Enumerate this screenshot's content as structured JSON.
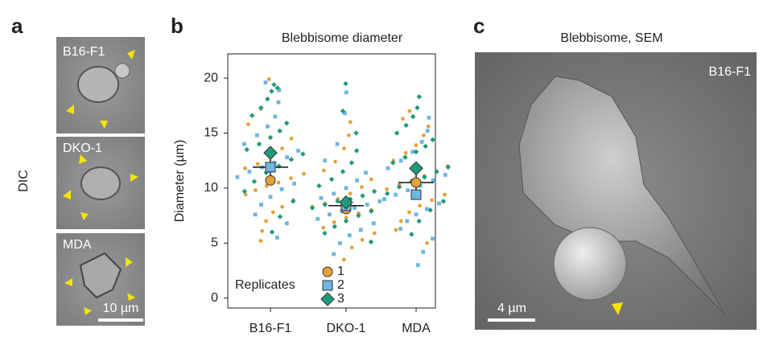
{
  "panel_a": {
    "letter": "a",
    "side_label": "DIC",
    "images": [
      {
        "label": "B16-F1"
      },
      {
        "label": "DKO-1"
      },
      {
        "label": "MDA"
      }
    ],
    "scale_bar": "10 µm"
  },
  "chart_data": {
    "type": "swarm",
    "letter": "b",
    "title": "Blebbisome diameter",
    "y_label": "Diameter (µm)",
    "legend_title": "Replicates",
    "categories": [
      "B16-F1",
      "DKO-1",
      "MDA"
    ],
    "ylim": [
      -0.9,
      22.2
    ],
    "yticks": [
      0,
      5,
      10,
      15,
      20
    ],
    "series": [
      {
        "name": "1",
        "color": "#e3a33a",
        "marker": "circle",
        "means": [
          10.7,
          8.1,
          10.5
        ],
        "values": [
          [
            5.2,
            6.1,
            7.0,
            7.8,
            8.3,
            8.9,
            9.4,
            9.8,
            10.2,
            10.5,
            10.9,
            11.3,
            11.8,
            12.2,
            12.9,
            13.6,
            14.5,
            15.8,
            17.2,
            19.9
          ],
          [
            3.5,
            4.6,
            5.3,
            5.9,
            6.4,
            6.9,
            7.3,
            7.7,
            8.0,
            8.3,
            8.6,
            9.0,
            9.5,
            10.1,
            10.8,
            11.6,
            12.4,
            13.6,
            14.8,
            16.0
          ],
          [
            5.0,
            6.2,
            7.0,
            7.8,
            8.4,
            8.9,
            9.4,
            9.9,
            10.3,
            10.7,
            11.1,
            11.5,
            12.0,
            12.5,
            13.2,
            13.9,
            14.8,
            15.6,
            16.3,
            17.0
          ]
        ]
      },
      {
        "name": "2",
        "color": "#6fb6e0",
        "marker": "square",
        "means": [
          11.9,
          8.4,
          9.4
        ],
        "values": [
          [
            5.5,
            6.8,
            7.6,
            8.5,
            9.2,
            9.9,
            10.4,
            11.0,
            11.5,
            11.9,
            12.3,
            12.8,
            13.4,
            14.0,
            14.8,
            15.6,
            16.5,
            17.8,
            18.9,
            19.6
          ],
          [
            4.0,
            5.0,
            5.7,
            6.2,
            6.8,
            7.2,
            7.6,
            7.9,
            8.2,
            8.5,
            8.8,
            9.1,
            9.5,
            10.0,
            10.7,
            11.4,
            12.5,
            14.0,
            16.8,
            18.7
          ],
          [
            3.0,
            4.2,
            5.4,
            6.3,
            7.0,
            7.6,
            8.1,
            8.6,
            9.0,
            9.4,
            9.8,
            10.2,
            10.7,
            11.2,
            11.8,
            12.5,
            13.3,
            14.2,
            15.2,
            16.4
          ]
        ]
      },
      {
        "name": "3",
        "color": "#1f9a7a",
        "marker": "diamond",
        "means": [
          13.2,
          8.7,
          11.8
        ],
        "values": [
          [
            6.0,
            7.4,
            8.8,
            9.7,
            10.6,
            11.4,
            12.0,
            12.6,
            13.1,
            13.5,
            14.0,
            14.6,
            15.2,
            15.9,
            16.6,
            17.3,
            18.1,
            18.8,
            19.4,
            19.1
          ],
          [
            5.1,
            5.9,
            6.5,
            7.0,
            7.5,
            7.9,
            8.2,
            8.5,
            8.8,
            9.0,
            9.3,
            9.7,
            10.2,
            10.8,
            11.5,
            12.3,
            13.4,
            15.0,
            17.0,
            19.5
          ],
          [
            5.8,
            7.0,
            8.0,
            8.8,
            9.5,
            10.1,
            10.6,
            11.0,
            11.5,
            11.9,
            12.3,
            12.8,
            13.3,
            13.8,
            14.4,
            15.0,
            15.7,
            16.5,
            17.3,
            18.3
          ]
        ]
      }
    ],
    "summary": {
      "mean": [
        11.9,
        8.4,
        10.5
      ],
      "error": [
        1.4,
        0.35,
        1.25
      ]
    }
  },
  "panel_c": {
    "letter": "c",
    "title": "Blebbisome, SEM",
    "label": "B16-F1",
    "scale_bar": "4 µm"
  }
}
